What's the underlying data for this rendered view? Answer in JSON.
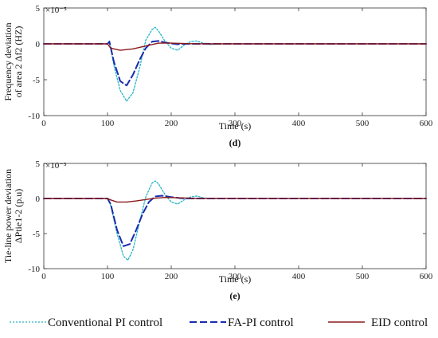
{
  "chart_data": [
    {
      "type": "line",
      "panel_label": "(d)",
      "xlabel": "Time (s)",
      "ylabel": [
        "Frequency deviation",
        "of area 2 Δf2 (HZ)"
      ],
      "y_multiplier": "×10⁻⁵",
      "xlim": [
        0,
        600
      ],
      "ylim": [
        -10,
        5
      ],
      "x_ticks": [
        0,
        100,
        200,
        300,
        400,
        500,
        600
      ],
      "y_ticks": [
        -10,
        -5,
        0,
        5
      ],
      "grid": false,
      "series": [
        {
          "name": "Conventional PI control",
          "color": "#22b5c8",
          "x": [
            0,
            100,
            103,
            110,
            120,
            130,
            140,
            150,
            160,
            170,
            175,
            180,
            190,
            200,
            210,
            220,
            230,
            240,
            250,
            260,
            280,
            300,
            600
          ],
          "y": [
            0,
            0,
            0.4,
            -3.0,
            -6.5,
            -8.0,
            -6.8,
            -3.5,
            0.5,
            2.0,
            2.3,
            1.8,
            0.4,
            -0.6,
            -0.9,
            -0.2,
            0.3,
            0.4,
            0.1,
            -0.1,
            0,
            0,
            0
          ]
        },
        {
          "name": "FA-PI control",
          "color": "#1a2bb0",
          "x": [
            0,
            100,
            103,
            110,
            120,
            130,
            140,
            150,
            160,
            170,
            180,
            190,
            200,
            210,
            220,
            240,
            600
          ],
          "y": [
            0,
            0,
            0.3,
            -2.5,
            -5.2,
            -5.8,
            -4.3,
            -2.3,
            -0.6,
            0.3,
            0.4,
            0.2,
            0.05,
            -0.05,
            0,
            0,
            0
          ]
        },
        {
          "name": "EID control",
          "color": "#8b1a1a",
          "x": [
            0,
            100,
            105,
            120,
            140,
            160,
            180,
            200,
            230,
            260,
            600
          ],
          "y": [
            0,
            0,
            -0.6,
            -0.9,
            -0.7,
            -0.3,
            0.1,
            0.1,
            0.02,
            0,
            0
          ]
        }
      ]
    },
    {
      "type": "line",
      "panel_label": "(e)",
      "xlabel": "Time (s)",
      "ylabel": [
        "Tie-line power deviation",
        "ΔPtie1-2 (p.u)"
      ],
      "y_multiplier": "×10⁻³",
      "xlim": [
        0,
        600
      ],
      "ylim": [
        -10,
        5
      ],
      "x_ticks": [
        0,
        100,
        200,
        300,
        400,
        500,
        600
      ],
      "y_ticks": [
        -10,
        -5,
        0,
        5
      ],
      "grid": false,
      "series": [
        {
          "name": "Conventional PI control",
          "color": "#22b5c8",
          "x": [
            0,
            100,
            105,
            115,
            125,
            132,
            140,
            150,
            160,
            170,
            175,
            180,
            190,
            200,
            210,
            220,
            230,
            240,
            250,
            260,
            280,
            600
          ],
          "y": [
            0,
            0,
            -1.0,
            -5.0,
            -8.2,
            -8.8,
            -7.3,
            -3.5,
            0.2,
            2.2,
            2.5,
            2.1,
            0.6,
            -0.5,
            -0.8,
            -0.2,
            0.2,
            0.35,
            0.1,
            -0.05,
            0,
            0
          ]
        },
        {
          "name": "FA-PI control",
          "color": "#1a2bb0",
          "x": [
            0,
            100,
            105,
            115,
            125,
            135,
            145,
            155,
            165,
            175,
            185,
            200,
            215,
            230,
            600
          ],
          "y": [
            0,
            0,
            -0.8,
            -4.5,
            -6.8,
            -6.5,
            -4.5,
            -2.2,
            -0.5,
            0.3,
            0.4,
            0.2,
            0.05,
            0,
            0
          ]
        },
        {
          "name": "EID control",
          "color": "#8b1a1a",
          "x": [
            0,
            100,
            105,
            115,
            130,
            145,
            160,
            175,
            190,
            210,
            240,
            600
          ],
          "y": [
            0,
            0,
            -0.2,
            -0.5,
            -0.5,
            -0.35,
            -0.15,
            0.05,
            0.15,
            0.1,
            0.02,
            0
          ]
        }
      ]
    }
  ],
  "legend": [
    {
      "label": "Conventional PI control",
      "color": "#22b5c8",
      "style": "dashed-thin"
    },
    {
      "label": "FA-PI control",
      "color": "#1a2bb0",
      "style": "dashed-thick"
    },
    {
      "label": "EID control",
      "color": "#8b1a1a",
      "style": "solid"
    }
  ]
}
